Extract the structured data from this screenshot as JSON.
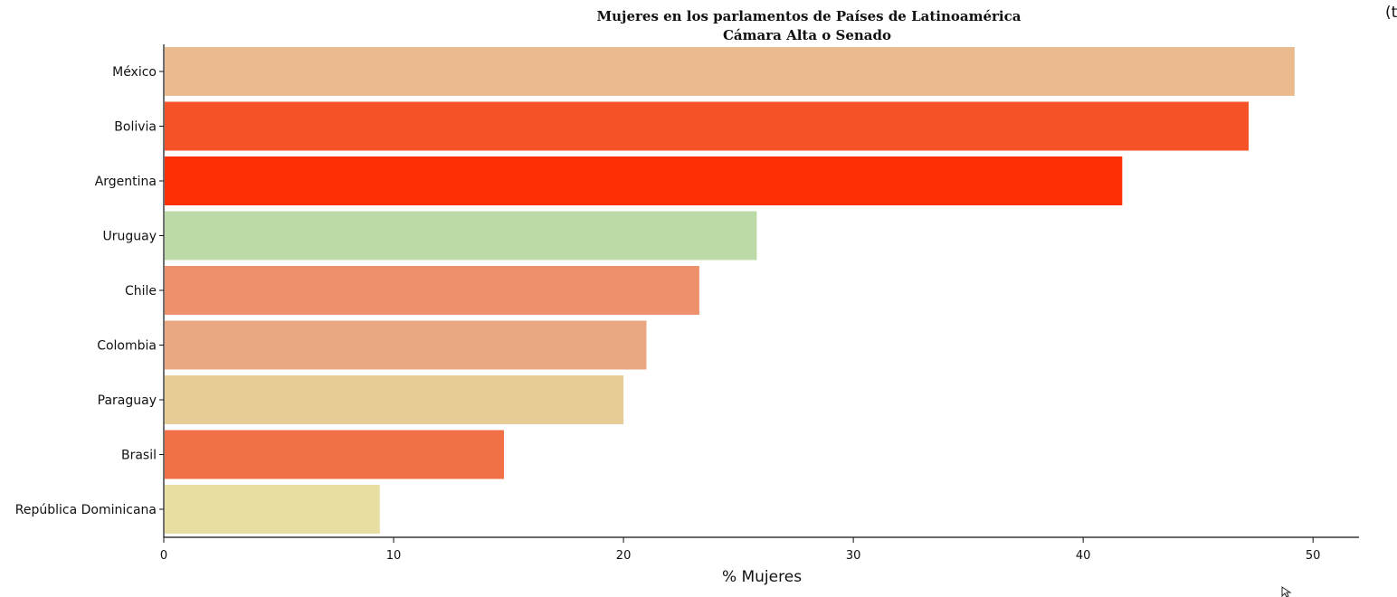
{
  "chart_data": {
    "type": "bar",
    "orientation": "horizontal",
    "title": [
      "Mujeres en los parlamentos de Países de Latinoamérica",
      "Cámara Alta o Senado"
    ],
    "xlabel": "% Mujeres",
    "ylabel": "",
    "xlim": [
      0,
      52
    ],
    "x_ticks": [
      0,
      10,
      20,
      30,
      40,
      50
    ],
    "grid": false,
    "legend": "none",
    "categories": [
      "México",
      "Bolivia",
      "Argentina",
      "Uruguay",
      "Chile",
      "Colombia",
      "Paraguay",
      "Brasil",
      "República Dominicana"
    ],
    "values": [
      49.2,
      47.2,
      41.7,
      25.8,
      23.3,
      21.0,
      20.0,
      14.8,
      9.4
    ],
    "colors": [
      "#e9bb8f",
      "#f65228",
      "#fe2f02",
      "#bcd9a8",
      "#ed916d",
      "#e9a882",
      "#e8cc98",
      "#f17048",
      "#e8dea3"
    ]
  },
  "corner_text": "(t",
  "cursor_icon": "mouse-pointer-icon"
}
